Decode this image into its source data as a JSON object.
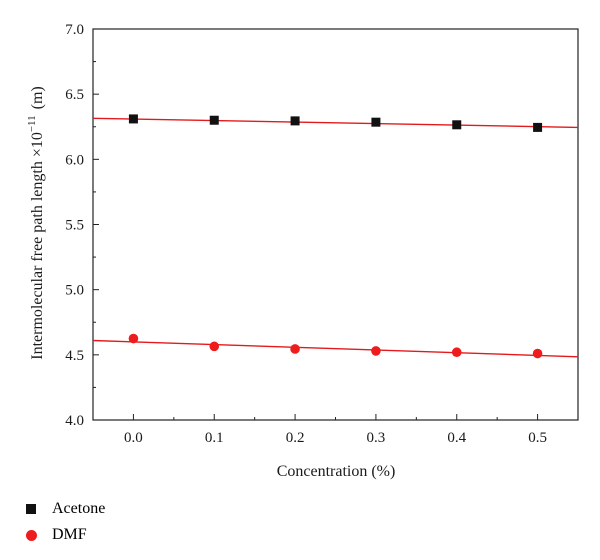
{
  "chart_data": {
    "type": "scatter",
    "xlabel": "Concentration (%)",
    "ylabel": "Intermolecular free path length ×10",
    "ylabel_exponent": "−11",
    "ylabel_unit": "(m)",
    "xlim": [
      -0.05,
      0.55
    ],
    "ylim": [
      4.0,
      7.0
    ],
    "x_ticks": [
      "0.0",
      "0.1",
      "0.2",
      "0.3",
      "0.4",
      "0.5"
    ],
    "y_ticks": [
      "4.0",
      "4.5",
      "5.0",
      "5.5",
      "6.0",
      "6.5",
      "7.0"
    ],
    "grid": false,
    "legend_position": "bottom-left",
    "series": [
      {
        "name": "Acetone",
        "marker": "square",
        "color": "#111111",
        "fit_color": "#e31a1c",
        "x": [
          0.0,
          0.1,
          0.2,
          0.3,
          0.4,
          0.5
        ],
        "y": [
          6.31,
          6.3,
          6.295,
          6.285,
          6.265,
          6.245
        ],
        "fit": [
          [
            -0.05,
            6.315
          ],
          [
            0.55,
            6.245
          ]
        ]
      },
      {
        "name": "DMF",
        "marker": "circle",
        "color": "#ee1c1c",
        "fit_color": "#e31a1c",
        "x": [
          0.0,
          0.1,
          0.2,
          0.3,
          0.4,
          0.5
        ],
        "y": [
          4.625,
          4.565,
          4.545,
          4.53,
          4.52,
          4.51
        ],
        "fit": [
          [
            -0.05,
            4.61
          ],
          [
            0.55,
            4.485
          ]
        ]
      }
    ]
  }
}
